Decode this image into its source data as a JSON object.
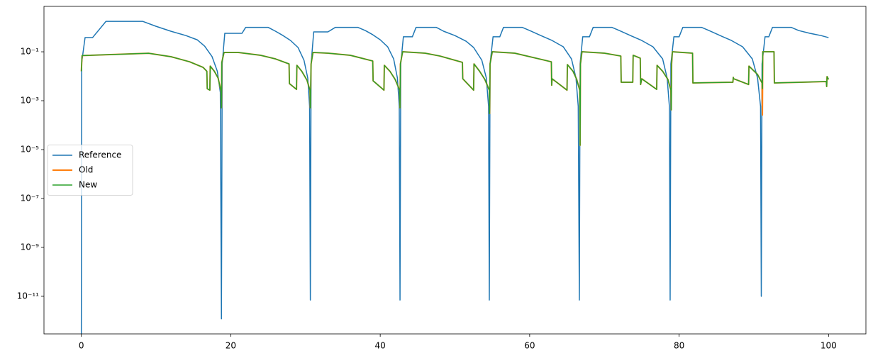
{
  "chart_data": {
    "type": "line",
    "log_y": true,
    "legend_loc": "center left",
    "xlim": [
      -5,
      105
    ],
    "xticks": [
      0,
      20,
      40,
      60,
      80,
      100
    ],
    "ylim": [
      2.9e-13,
      7.2
    ],
    "yticks": [
      {
        "value": 1e-11,
        "label": "10⁻¹¹"
      },
      {
        "value": 1e-09,
        "label": "10⁻⁹"
      },
      {
        "value": 1e-07,
        "label": "10⁻⁷"
      },
      {
        "value": 1e-05,
        "label": "10⁻⁵"
      },
      {
        "value": 0.001,
        "label": "10⁻³"
      },
      {
        "value": 0.1,
        "label": "10⁻¹"
      }
    ],
    "series": [
      {
        "name": "Reference",
        "color": "#1f77b4",
        "width": 1.5,
        "x": [
          0,
          0.05,
          0.5,
          1.5,
          3.3,
          8.2,
          10,
          12,
          14,
          15.5,
          16.5,
          17.5,
          18.2,
          18.6,
          18.75,
          18.85,
          19.2,
          21.5,
          22,
          25,
          26,
          27,
          28,
          29,
          29.8,
          30.3,
          30.55,
          30.65,
          30.75,
          31.1,
          33,
          34,
          37,
          38,
          39,
          40,
          41,
          41.8,
          42.3,
          42.55,
          42.65,
          42.75,
          43.1,
          44.3,
          44.8,
          47.5,
          48.5,
          50,
          51.5,
          52.5,
          53.6,
          54.2,
          54.5,
          54.6,
          54.7,
          55.1,
          56,
          56.5,
          59,
          60,
          61.5,
          63,
          64.5,
          65.6,
          66.2,
          66.5,
          66.65,
          66.75,
          67.1,
          68,
          68.5,
          71,
          72,
          73.5,
          75,
          76.5,
          77.8,
          78.4,
          78.7,
          78.8,
          78.9,
          79.3,
          80,
          80.5,
          83,
          84,
          85.5,
          87,
          88.5,
          89.8,
          90.5,
          90.9,
          91.0,
          91.1,
          91.5,
          92,
          92.5,
          95,
          96,
          97.5,
          99,
          100
        ],
        "values": [
          1e-13,
          0.037,
          0.38,
          0.38,
          1.76,
          1.76,
          1.1,
          0.69,
          0.46,
          0.31,
          0.17,
          0.063,
          0.016,
          0.0022,
          1.2e-12,
          0.032,
          0.57,
          0.57,
          1.0,
          1.0,
          0.69,
          0.46,
          0.29,
          0.15,
          0.045,
          0.0085,
          0.00059,
          7e-12,
          0.032,
          0.65,
          0.65,
          1.0,
          1.0,
          0.74,
          0.5,
          0.31,
          0.16,
          0.051,
          0.0085,
          0.00059,
          7e-12,
          0.032,
          0.41,
          0.41,
          1.0,
          1.0,
          0.69,
          0.46,
          0.27,
          0.15,
          0.045,
          0.0085,
          0.00059,
          7e-12,
          0.032,
          0.41,
          0.41,
          1.0,
          1.0,
          0.74,
          0.46,
          0.29,
          0.16,
          0.051,
          0.0085,
          0.00059,
          7e-12,
          0.032,
          0.41,
          0.41,
          1.0,
          1.0,
          0.74,
          0.46,
          0.29,
          0.16,
          0.051,
          0.0085,
          0.00059,
          7e-12,
          0.032,
          0.41,
          0.41,
          1.0,
          1.0,
          0.74,
          0.46,
          0.29,
          0.16,
          0.051,
          0.0085,
          0.00059,
          1e-11,
          0.032,
          0.41,
          0.41,
          1.0,
          1.0,
          0.74,
          0.57,
          0.46,
          0.38
        ]
      },
      {
        "name": "Old",
        "color": "#ff7f0e",
        "width": 2,
        "x": [
          0,
          0.1,
          9,
          12,
          14.5,
          16.3,
          16.8,
          16.85,
          17.2,
          17.25,
          17.8,
          18.3,
          18.7,
          18.75,
          18.8,
          19.1,
          21,
          24,
          26,
          27.8,
          27.85,
          28.8,
          28.85,
          29.5,
          30.2,
          30.6,
          30.65,
          30.75,
          31,
          33,
          36,
          39,
          39.05,
          40.5,
          40.55,
          41.3,
          42,
          42.6,
          42.65,
          42.7,
          43,
          46,
          48,
          51,
          51.05,
          52.5,
          52.55,
          53.3,
          54,
          54.6,
          54.65,
          54.7,
          55,
          58,
          62.9,
          62.95,
          63,
          65,
          65.05,
          65.8,
          66.3,
          66.7,
          66.75,
          66.8,
          67,
          70,
          72.2,
          72.25,
          73.8,
          73.85,
          74.8,
          74.85,
          75,
          77,
          77.05,
          77.8,
          78.5,
          78.9,
          78.95,
          79,
          79.1,
          81.8,
          81.85,
          87.2,
          87.25,
          87.3,
          89.3,
          89.35,
          90.5,
          91.1,
          91.15,
          91.2,
          92.7,
          92.75,
          99.7,
          99.75,
          99.8,
          100
        ],
        "values": [
          0.016,
          0.07,
          0.087,
          0.063,
          0.039,
          0.023,
          0.016,
          0.0031,
          0.0027,
          0.026,
          0.016,
          0.0085,
          0.0025,
          0.00051,
          0.037,
          0.094,
          0.094,
          0.072,
          0.051,
          0.032,
          0.005,
          0.0029,
          0.028,
          0.016,
          0.0069,
          0.0027,
          0.00051,
          0.032,
          0.094,
          0.088,
          0.072,
          0.042,
          0.0065,
          0.0027,
          0.028,
          0.016,
          0.0074,
          0.0027,
          0.00051,
          0.032,
          0.1,
          0.088,
          0.067,
          0.037,
          0.0079,
          0.0027,
          0.032,
          0.016,
          0.0074,
          0.0027,
          0.0003,
          0.032,
          0.1,
          0.088,
          0.039,
          0.0043,
          0.0079,
          0.0027,
          0.03,
          0.016,
          0.0074,
          0.0027,
          1.5e-05,
          0.032,
          0.1,
          0.088,
          0.067,
          0.0057,
          0.0057,
          0.072,
          0.055,
          0.0046,
          0.0079,
          0.0029,
          0.028,
          0.016,
          0.0074,
          0.0027,
          0.00042,
          0.032,
          0.1,
          0.088,
          0.0053,
          0.0057,
          0.009,
          0.0079,
          0.0046,
          0.026,
          0.0118,
          0.0053,
          0.00026,
          0.1,
          0.1,
          0.0053,
          0.0061,
          0.0038,
          0.0097,
          0.0074
        ]
      },
      {
        "name": "New",
        "color": "#2ca02c",
        "width": 1.5,
        "x": [
          0,
          0.1,
          9,
          12,
          14.5,
          16.3,
          16.8,
          16.85,
          17.2,
          17.25,
          17.8,
          18.3,
          18.7,
          18.75,
          18.8,
          19.1,
          21,
          24,
          26,
          27.8,
          27.85,
          28.8,
          28.85,
          29.5,
          30.2,
          30.6,
          30.65,
          30.75,
          31,
          33,
          36,
          39,
          39.05,
          40.5,
          40.55,
          41.3,
          42,
          42.6,
          42.65,
          42.7,
          43,
          46,
          48,
          51,
          51.05,
          52.5,
          52.55,
          53.3,
          54,
          54.6,
          54.65,
          54.7,
          55,
          58,
          62.9,
          62.95,
          63,
          65,
          65.05,
          65.8,
          66.3,
          66.7,
          66.75,
          66.8,
          67,
          70,
          72.2,
          72.25,
          73.8,
          73.85,
          74.8,
          74.85,
          75,
          77,
          77.05,
          77.8,
          78.5,
          78.9,
          78.95,
          79,
          79.1,
          81.8,
          81.85,
          87.2,
          87.25,
          87.3,
          89.3,
          89.35,
          90.5,
          91.1,
          91.15,
          91.2,
          92.7,
          92.75,
          99.7,
          99.75,
          99.8,
          100
        ],
        "values": [
          0.016,
          0.07,
          0.087,
          0.063,
          0.039,
          0.023,
          0.016,
          0.0031,
          0.0027,
          0.026,
          0.016,
          0.0085,
          0.0025,
          0.00051,
          0.037,
          0.094,
          0.094,
          0.072,
          0.051,
          0.032,
          0.005,
          0.0029,
          0.028,
          0.016,
          0.0069,
          0.0027,
          0.00051,
          0.032,
          0.094,
          0.088,
          0.072,
          0.042,
          0.0065,
          0.0027,
          0.028,
          0.016,
          0.0074,
          0.0027,
          0.00051,
          0.032,
          0.1,
          0.088,
          0.067,
          0.037,
          0.0079,
          0.0027,
          0.032,
          0.016,
          0.0074,
          0.0027,
          0.0003,
          0.032,
          0.1,
          0.088,
          0.039,
          0.0043,
          0.0079,
          0.0027,
          0.03,
          0.016,
          0.0074,
          0.0027,
          1.5e-05,
          0.032,
          0.1,
          0.088,
          0.067,
          0.0057,
          0.0057,
          0.072,
          0.055,
          0.0046,
          0.0079,
          0.0029,
          0.028,
          0.016,
          0.0074,
          0.0027,
          0.00042,
          0.032,
          0.1,
          0.088,
          0.0053,
          0.0057,
          0.009,
          0.0079,
          0.0046,
          0.026,
          0.0118,
          0.0053,
          0.0031,
          0.1,
          0.1,
          0.0053,
          0.0061,
          0.0038,
          0.0097,
          0.0074
        ]
      }
    ]
  }
}
